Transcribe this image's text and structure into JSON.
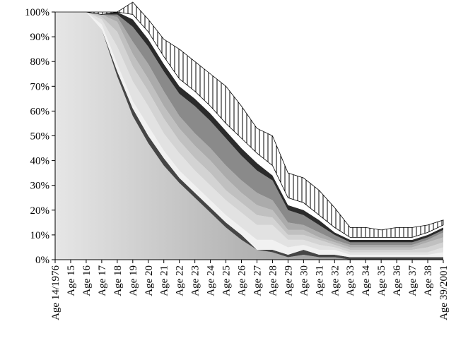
{
  "chart_data": {
    "type": "area",
    "stacked": true,
    "title": "",
    "xlabel": "",
    "ylabel": "",
    "ylim": [
      0,
      100
    ],
    "yticks": [
      "0%",
      "10%",
      "20%",
      "30%",
      "40%",
      "50%",
      "60%",
      "70%",
      "80%",
      "90%",
      "100%"
    ],
    "categories": [
      "Age 14/1976",
      "Age 15",
      "Age 16",
      "Age 17",
      "Age 18",
      "Age 19",
      "Age 20",
      "Age 21",
      "Age 22",
      "Age 23",
      "Age 24",
      "Age 25",
      "Age 26",
      "Age 27",
      "Age 28",
      "Age 29",
      "Age 30",
      "Age 31",
      "Age 32",
      "Age 33",
      "Age 34",
      "Age 35",
      "Age 36",
      "Age 37",
      "Age 38",
      "Age 39/2001"
    ],
    "series": [
      {
        "fill": "gradient-gray",
        "values": [
          100,
          100,
          100,
          93,
          74,
          58,
          47,
          38,
          31,
          25,
          19,
          13,
          8,
          4,
          3,
          1,
          2,
          1,
          1,
          0,
          0,
          0,
          0,
          0,
          0,
          0
        ]
      },
      {
        "fill": "#454545",
        "values": [
          0,
          0,
          0,
          0,
          2,
          3,
          3,
          3,
          2,
          2,
          2,
          2,
          2,
          0,
          1,
          1,
          2,
          1,
          1,
          1,
          1,
          1,
          1,
          1,
          1,
          1
        ]
      },
      {
        "fill": "#f1f1f1",
        "values": [
          0,
          0,
          0,
          2,
          3,
          3,
          4,
          3,
          3,
          3,
          3,
          3,
          3,
          4,
          4,
          3,
          2,
          2,
          2,
          1,
          1,
          1,
          1,
          1,
          1,
          2
        ]
      },
      {
        "fill": "#e2e2e2",
        "values": [
          0,
          0,
          0,
          2,
          7,
          8,
          8,
          7,
          7,
          6,
          6,
          6,
          6,
          6,
          6,
          3,
          2,
          2,
          1,
          1,
          1,
          1,
          1,
          1,
          1,
          2
        ]
      },
      {
        "fill": "#d3d3d3",
        "values": [
          0,
          0,
          0,
          1,
          6,
          6,
          6,
          6,
          5,
          5,
          5,
          4,
          4,
          4,
          3,
          2,
          2,
          2,
          1,
          1,
          1,
          1,
          1,
          1,
          2,
          2
        ]
      },
      {
        "fill": "#c0c0c0",
        "values": [
          0,
          0,
          0,
          1,
          4,
          5,
          5,
          5,
          5,
          5,
          5,
          5,
          4,
          4,
          3,
          2,
          2,
          1,
          1,
          1,
          1,
          1,
          1,
          1,
          2,
          2
        ]
      },
      {
        "fill": "#ababab",
        "values": [
          0,
          0,
          0,
          0,
          2,
          5,
          6,
          6,
          5,
          5,
          5,
          5,
          5,
          5,
          4,
          3,
          2,
          2,
          1,
          1,
          1,
          1,
          1,
          1,
          1,
          2
        ]
      },
      {
        "fill": "#8a8a8a",
        "values": [
          0,
          0,
          0,
          0,
          1,
          6,
          7,
          8,
          9,
          11,
          11,
          11,
          10,
          9,
          8,
          5,
          4,
          3,
          2,
          1,
          1,
          1,
          1,
          1,
          1,
          1
        ]
      },
      {
        "fill": "#2b2b2b",
        "values": [
          0,
          0,
          0,
          0,
          1,
          3,
          3,
          3,
          3,
          3,
          3,
          3,
          3,
          3,
          2,
          2,
          2,
          2,
          1,
          1,
          1,
          1,
          1,
          1,
          1,
          1
        ]
      },
      {
        "fill": "#ffffff",
        "values": [
          0,
          0,
          0,
          0,
          0,
          2,
          3,
          3,
          3,
          3,
          3,
          3,
          4,
          4,
          4,
          3,
          3,
          2,
          2,
          1,
          1,
          1,
          1,
          1,
          1,
          1
        ]
      },
      {
        "fill": "vertical-hatch",
        "values": [
          0,
          0,
          0,
          1,
          0,
          5,
          5,
          7,
          12,
          12,
          13,
          15,
          13,
          10,
          12,
          10,
          10,
          10,
          8,
          4,
          4,
          3,
          4,
          4,
          3,
          2
        ]
      }
    ]
  }
}
